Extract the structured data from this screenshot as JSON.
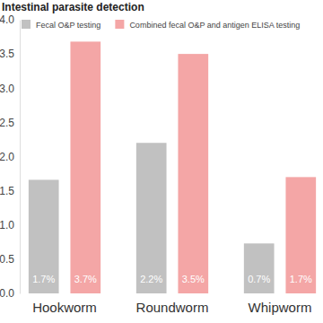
{
  "chart_data": {
    "type": "bar",
    "title": "Intestinal parasite detection",
    "categories": [
      "Hookworm",
      "Roundworm",
      "Whipworm"
    ],
    "series": [
      {
        "name": "Fecal O&P testing",
        "color": "#c1c1c1",
        "values": [
          1.66,
          2.2,
          0.73
        ],
        "value_labels": [
          "1.7%",
          "2.2%",
          "0.7%"
        ]
      },
      {
        "name": "Combined fecal O&P and antigen ELISA testing",
        "color": "#f4a6a6",
        "values": [
          3.68,
          3.5,
          1.7
        ],
        "value_labels": [
          "3.7%",
          "3.5%",
          "1.7%"
        ]
      }
    ],
    "ylim": [
      0,
      4
    ],
    "yticks": [
      {
        "value": 0,
        "label": "0.0"
      },
      0.5,
      {
        "value": 1,
        "label": "1.0"
      },
      1.5,
      {
        "value": 2,
        "label": "2.0"
      },
      2.5,
      {
        "value": 3,
        "label": "3.0"
      },
      3.5,
      {
        "value": 4,
        "label": "4.0"
      }
    ],
    "grid": false,
    "legend": "top",
    "data_labels": true
  }
}
